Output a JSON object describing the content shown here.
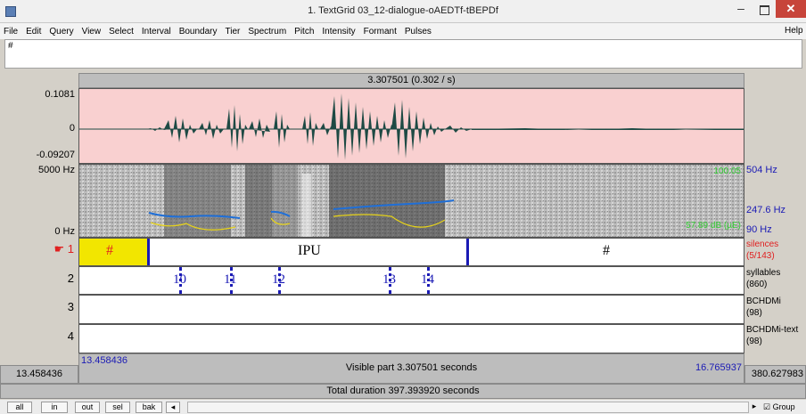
{
  "window": {
    "title": "1. TextGrid 03_12-dialogue-oAEDTf-tBEPDf",
    "minimize": "–",
    "close": "✕"
  },
  "menu": {
    "items": [
      "File",
      "Edit",
      "Query",
      "View",
      "Select",
      "Interval",
      "Boundary",
      "Tier",
      "Spectrum",
      "Pitch",
      "Intensity",
      "Formant",
      "Pulses"
    ],
    "help": "Help"
  },
  "text_area": {
    "value": "#"
  },
  "selection_header": "3.307501 (0.302 / s)",
  "waveform": {
    "max": "0.1081",
    "zero": "0",
    "min": "-0.09207"
  },
  "spectrogram": {
    "top_freq": "5000 Hz",
    "bottom_freq": "0 Hz",
    "intensity_top": "100.05",
    "intensity_bottom": "57.89 dB (µE)",
    "pitch_top": "504 Hz",
    "pitch_mid": "247.6 Hz",
    "pitch_bottom": "90 Hz"
  },
  "tiers": [
    {
      "num": "1",
      "name": "silences",
      "count": "(5/143)",
      "intervals": [
        "#",
        "IPU",
        "#"
      ]
    },
    {
      "num": "2",
      "name": "syllables",
      "count": "(860)",
      "labels": [
        "10",
        "11",
        "12",
        "13",
        "14"
      ]
    },
    {
      "num": "3",
      "name": "BCHDMi",
      "count": "(98)"
    },
    {
      "num": "4",
      "name": "BCHDMi-text",
      "count": "(98)"
    }
  ],
  "visible": {
    "start": "13.458436",
    "end": "16.765937",
    "label": "Visible part 3.307501 seconds",
    "left_time": "13.458436",
    "right_time": "380.627983"
  },
  "total_duration": "Total duration 397.393920 seconds",
  "buttons": {
    "all": "all",
    "in": "in",
    "out": "out",
    "sel": "sel",
    "bak": "bak",
    "group": "Group"
  },
  "colors": {
    "waveform_bg": "#f9d0d0",
    "selection_yellow": "#f2e600",
    "boundary_blue": "#1a1ab5",
    "pitch_blue": "#1f6fd8",
    "intensity_yellow": "#e6d21a",
    "silences_red": "#e02020",
    "intensity_label_green": "#33cc33"
  }
}
